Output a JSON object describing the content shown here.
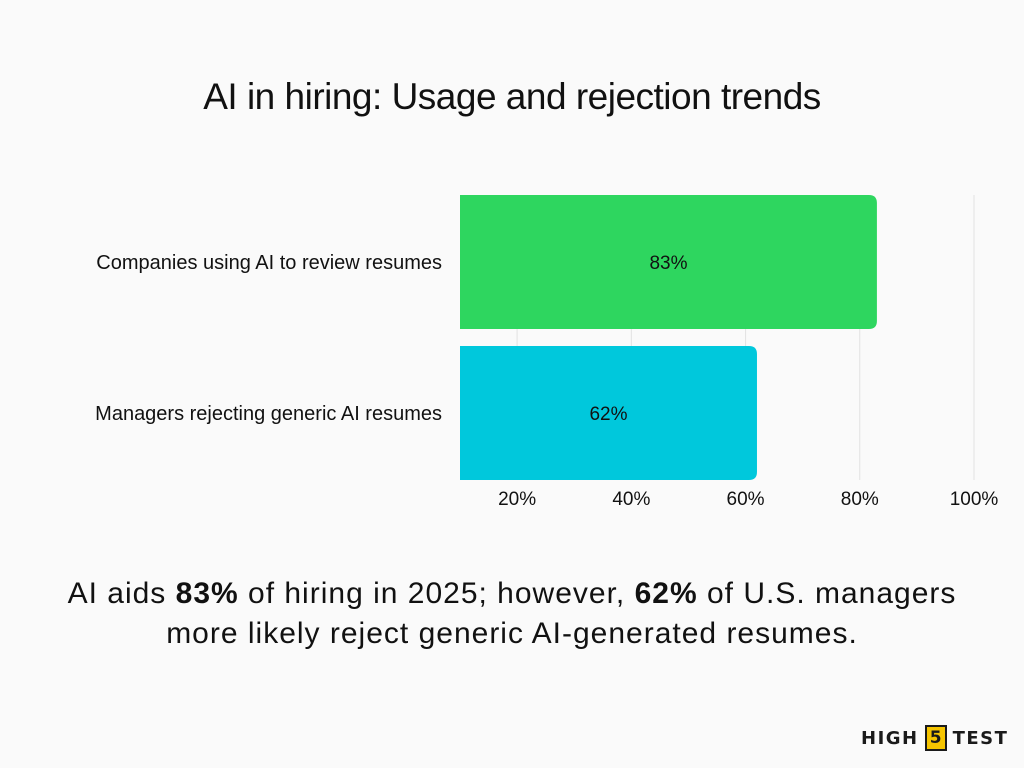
{
  "chart_data": {
    "type": "bar",
    "orientation": "horizontal",
    "title": "AI in hiring: Usage and rejection trends",
    "categories": [
      "Companies using AI to review resumes",
      "Managers rejecting generic AI resumes"
    ],
    "values": [
      83,
      62
    ],
    "value_labels": [
      "83%",
      "62%"
    ],
    "colors": [
      "#2ed65f",
      "#00c8dc"
    ],
    "xlim": [
      10,
      100
    ],
    "xticks": [
      20,
      40,
      60,
      80,
      100
    ],
    "xtick_labels": [
      "20%",
      "40%",
      "60%",
      "80%",
      "100%"
    ],
    "grid": "vertical"
  },
  "caption": {
    "part1": "AI aids ",
    "bold1": "83%",
    "part2": " of hiring in 2025; however, ",
    "bold2": "62%",
    "part3": " of U.S. managers more likely reject generic AI-generated resumes."
  },
  "logo": {
    "left": "HIGH",
    "box": "5",
    "right": "TEST",
    "box_color": "#f5c400"
  }
}
